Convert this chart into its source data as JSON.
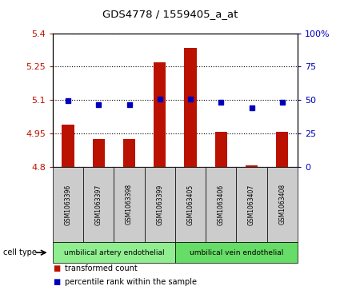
{
  "title": "GDS4778 / 1559405_a_at",
  "samples": [
    "GSM1063396",
    "GSM1063397",
    "GSM1063398",
    "GSM1063399",
    "GSM1063405",
    "GSM1063406",
    "GSM1063407",
    "GSM1063408"
  ],
  "transformed_count": [
    4.99,
    4.925,
    4.925,
    5.27,
    5.335,
    4.957,
    4.806,
    4.957
  ],
  "percentile_rank": [
    49.5,
    46.5,
    46.5,
    50.5,
    50.5,
    48.5,
    44.0,
    48.5
  ],
  "ylim_left": [
    4.8,
    5.4
  ],
  "ylim_right": [
    0,
    100
  ],
  "yticks_left": [
    4.8,
    4.95,
    5.1,
    5.25,
    5.4
  ],
  "yticks_right": [
    0,
    25,
    50,
    75,
    100
  ],
  "ytick_labels_left": [
    "4.8",
    "4.95",
    "5.1",
    "5.25",
    "5.4"
  ],
  "ytick_labels_right": [
    "0",
    "25",
    "50",
    "75",
    "100%"
  ],
  "bar_color": "#bb1100",
  "dot_color": "#0000bb",
  "grid_color": "#000000",
  "cell_type_groups": [
    {
      "label": "umbilical artery endothelial",
      "start": 0,
      "end": 3,
      "color": "#90ee90"
    },
    {
      "label": "umbilical vein endothelial",
      "start": 4,
      "end": 7,
      "color": "#66dd66"
    }
  ],
  "legend_bar_label": "transformed count",
  "legend_dot_label": "percentile rank within the sample",
  "cell_type_label": "cell type",
  "background_color": "#ffffff",
  "tick_area_color": "#cccccc",
  "bar_width": 0.4
}
